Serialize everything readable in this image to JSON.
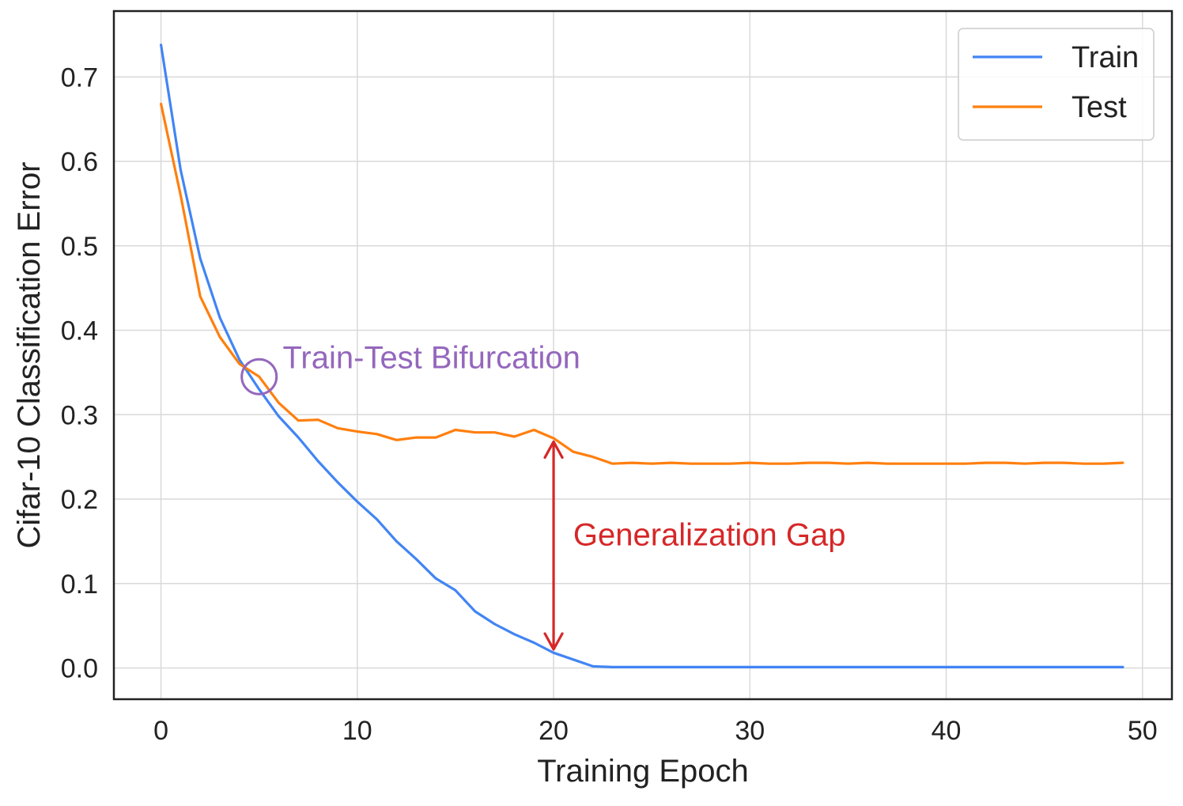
{
  "chart_data": {
    "type": "line",
    "title": "",
    "xlabel": "Training Epoch",
    "ylabel": "Cifar-10 Classification Error",
    "xlim": [
      -2.4,
      51.5
    ],
    "ylim": [
      -0.037,
      0.778
    ],
    "grid": true,
    "xticks": [
      0,
      10,
      20,
      30,
      40,
      50
    ],
    "xtick_labels": [
      "0",
      "10",
      "20",
      "30",
      "40",
      "50"
    ],
    "yticks": [
      0.0,
      0.1,
      0.2,
      0.3,
      0.4,
      0.5,
      0.6,
      0.7
    ],
    "ytick_labels": [
      "0.0",
      "0.1",
      "0.2",
      "0.3",
      "0.4",
      "0.5",
      "0.6",
      "0.7"
    ],
    "legend_position": "top-right",
    "x": [
      0,
      1,
      2,
      3,
      4,
      5,
      6,
      7,
      8,
      9,
      10,
      11,
      12,
      13,
      14,
      15,
      16,
      17,
      18,
      19,
      20,
      21,
      22,
      23,
      24,
      25,
      26,
      27,
      28,
      29,
      30,
      31,
      32,
      33,
      34,
      35,
      36,
      37,
      38,
      39,
      40,
      41,
      42,
      43,
      44,
      45,
      46,
      47,
      48,
      49
    ],
    "series": [
      {
        "name": "Train",
        "color": "#4285f4",
        "values": [
          0.738,
          0.59,
          0.485,
          0.415,
          0.365,
          0.33,
          0.298,
          0.273,
          0.245,
          0.22,
          0.197,
          0.176,
          0.15,
          0.129,
          0.106,
          0.092,
          0.067,
          0.052,
          0.04,
          0.03,
          0.018,
          0.01,
          0.002,
          0.001,
          0.001,
          0.001,
          0.001,
          0.001,
          0.001,
          0.001,
          0.001,
          0.001,
          0.001,
          0.001,
          0.001,
          0.001,
          0.001,
          0.001,
          0.001,
          0.001,
          0.001,
          0.001,
          0.001,
          0.001,
          0.001,
          0.001,
          0.001,
          0.001,
          0.001,
          0.001
        ]
      },
      {
        "name": "Test",
        "color": "#ff7f0e",
        "values": [
          0.668,
          0.56,
          0.44,
          0.392,
          0.36,
          0.345,
          0.314,
          0.293,
          0.294,
          0.284,
          0.28,
          0.277,
          0.27,
          0.273,
          0.273,
          0.282,
          0.279,
          0.279,
          0.274,
          0.282,
          0.272,
          0.256,
          0.25,
          0.242,
          0.243,
          0.242,
          0.243,
          0.242,
          0.242,
          0.242,
          0.243,
          0.242,
          0.242,
          0.243,
          0.243,
          0.242,
          0.243,
          0.242,
          0.242,
          0.242,
          0.242,
          0.242,
          0.243,
          0.243,
          0.242,
          0.243,
          0.243,
          0.242,
          0.242,
          0.243
        ]
      }
    ],
    "annotations": [
      {
        "id": "bifurcation",
        "text": "Train-Test Bifurcation",
        "color": "#9467bd",
        "marker": "circle",
        "point": [
          5,
          0.345
        ],
        "text_anchor_point": [
          6.2,
          0.355
        ]
      },
      {
        "id": "gap",
        "text": "Generalization Gap",
        "color": "#d62728",
        "arrow_x": 20,
        "arrow_from": 0.022,
        "arrow_to": 0.268,
        "text_anchor_point": [
          21,
          0.145
        ]
      }
    ]
  }
}
